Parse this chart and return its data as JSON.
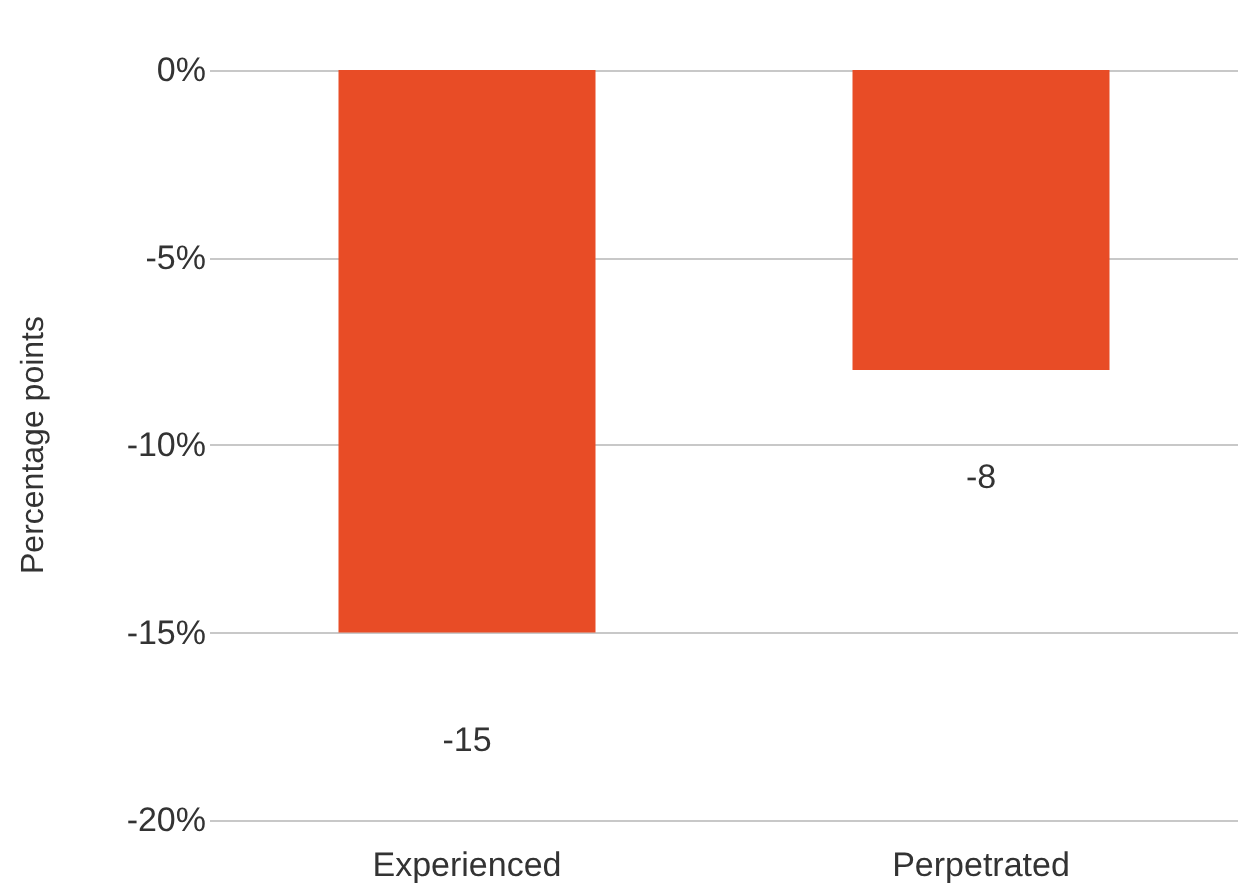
{
  "chart_data": {
    "type": "bar",
    "ylabel": "Percentage points",
    "categories": [
      "Experienced",
      "Perpetrated"
    ],
    "values": [
      -15,
      -8
    ],
    "color": "#e84c26",
    "data_labels": true,
    "ylim": [
      -20,
      0
    ],
    "yticks": [
      {
        "value": 0,
        "label": "0%"
      },
      {
        "value": -5,
        "label": "-5%"
      },
      {
        "value": -10,
        "label": "-10%"
      },
      {
        "value": -15,
        "label": "-15%"
      },
      {
        "value": -20,
        "label": "-20%"
      }
    ],
    "grid": "y"
  }
}
